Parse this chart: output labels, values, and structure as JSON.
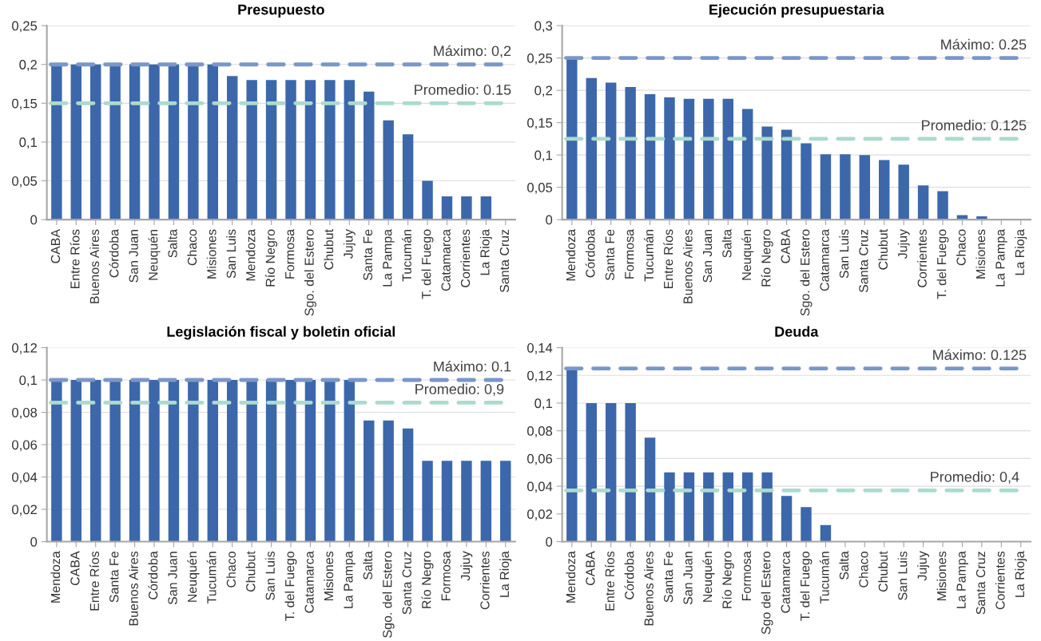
{
  "chart_data": [
    {
      "type": "bar",
      "title": "Presupuesto",
      "categories": [
        "CABA",
        "Entre Ríos",
        "Buenos Aires",
        "Córdoba",
        "San Juan",
        "Neuquén",
        "Salta",
        "Chaco",
        "Misiones",
        "San Luis",
        "Mendoza",
        "Río Negro",
        "Formosa",
        "Sgo. del Estero",
        "Chubut",
        "Jujuy",
        "Santa Fe",
        "La Pampa",
        "Tucumán",
        "T. del Fuego",
        "Catamarca",
        "Corrientes",
        "La Rioja",
        "Santa Cruz"
      ],
      "values": [
        0.2,
        0.2,
        0.2,
        0.2,
        0.2,
        0.2,
        0.2,
        0.2,
        0.2,
        0.185,
        0.18,
        0.18,
        0.18,
        0.18,
        0.18,
        0.18,
        0.165,
        0.128,
        0.11,
        0.05,
        0.03,
        0.03,
        0.03,
        0
      ],
      "color": "#3c67ab",
      "ylim": [
        0,
        0.25
      ],
      "yticks": [
        {
          "value": 0,
          "label": "0"
        },
        {
          "value": 0.05,
          "label": "0,05"
        },
        {
          "value": 0.1,
          "label": "0,1"
        },
        {
          "value": 0.15,
          "label": "0,15"
        },
        {
          "value": 0.2,
          "label": "0,2"
        },
        {
          "value": 0.25,
          "label": "0,25"
        }
      ],
      "grid": "y",
      "legend": false,
      "ref_lines": [
        {
          "axis": "y",
          "value": 0.2,
          "label": "Máximo: 0,2",
          "color": "#7b96c9",
          "line_style": "dashed"
        },
        {
          "axis": "y",
          "value": 0.15,
          "label": "Promedio: 0.15",
          "color": "#acdace",
          "line_style": "dashed"
        }
      ]
    },
    {
      "type": "bar",
      "title": "Ejecución presupuestaria",
      "categories": [
        "Mendoza",
        "Córdoba",
        "Santa Fe",
        "Formosa",
        "Tucumán",
        "Entre Ríos",
        "Buenos Aires",
        "San Juan",
        "Salta",
        "Neuquén",
        "Río Negro",
        "CABA",
        "Sgo. del Estero",
        "Catamarca",
        "San Luis",
        "Santa Cruz",
        "Chubut",
        "Jujuy",
        "Corrientes",
        "T. del Fuego",
        "Chaco",
        "Misiones",
        "La Pampa",
        "La Rioja"
      ],
      "values": [
        0.248,
        0.219,
        0.212,
        0.205,
        0.194,
        0.189,
        0.187,
        0.187,
        0.187,
        0.171,
        0.144,
        0.139,
        0.118,
        0.101,
        0.101,
        0.1,
        0.092,
        0.085,
        0.053,
        0.044,
        0.007,
        0.005,
        0,
        0
      ],
      "color": "#3c67ab",
      "ylim": [
        0,
        0.3
      ],
      "yticks": [
        {
          "value": 0,
          "label": "0"
        },
        {
          "value": 0.05,
          "label": "0,05"
        },
        {
          "value": 0.1,
          "label": "0,1"
        },
        {
          "value": 0.15,
          "label": "0,15"
        },
        {
          "value": 0.2,
          "label": "0,2"
        },
        {
          "value": 0.25,
          "label": "0,25"
        },
        {
          "value": 0.3,
          "label": "0,3"
        }
      ],
      "grid": "y",
      "legend": false,
      "ref_lines": [
        {
          "axis": "y",
          "value": 0.25,
          "label": "Máximo: 0.25",
          "color": "#7b96c9",
          "line_style": "dashed"
        },
        {
          "axis": "y",
          "value": 0.125,
          "label": "Promedio: 0.125",
          "color": "#acdace",
          "line_style": "dashed"
        }
      ]
    },
    {
      "type": "bar",
      "title": "Legislación fiscal y boletin oficial",
      "categories": [
        "Mendoza",
        "CABA",
        "Entre Ríos",
        "Santa Fe",
        "Buenos Aires",
        "Córdoba",
        "San Juan",
        "Neuquén",
        "Tucumán",
        "Chaco",
        "Chubut",
        "San Luis",
        "T. del Fuego",
        "Catamarca",
        "Misiones",
        "La Pampa",
        "Salta",
        "Sgo. del Estero",
        "Santa Cruz",
        "Río Negro",
        "Formosa",
        "Jujuy",
        "Corrientes",
        "La Rioja"
      ],
      "values": [
        0.1,
        0.1,
        0.1,
        0.1,
        0.1,
        0.1,
        0.1,
        0.1,
        0.1,
        0.1,
        0.1,
        0.1,
        0.1,
        0.1,
        0.1,
        0.1,
        0.075,
        0.075,
        0.07,
        0.05,
        0.05,
        0.05,
        0.05,
        0.05
      ],
      "color": "#3c67ab",
      "ylim": [
        0,
        0.12
      ],
      "yticks": [
        {
          "value": 0,
          "label": "0"
        },
        {
          "value": 0.02,
          "label": "0,02"
        },
        {
          "value": 0.04,
          "label": "0,04"
        },
        {
          "value": 0.06,
          "label": "0,06"
        },
        {
          "value": 0.08,
          "label": "0,08"
        },
        {
          "value": 0.1,
          "label": "0,1"
        },
        {
          "value": 0.12,
          "label": "0,12"
        }
      ],
      "grid": "y",
      "legend": false,
      "ref_lines": [
        {
          "axis": "y",
          "value": 0.1,
          "label": "Máximo: 0.1",
          "color": "#7b96c9",
          "line_style": "dashed"
        },
        {
          "axis": "y",
          "value": 0.086,
          "color": "#acdace",
          "line_style": "dashed"
        }
      ],
      "annotations": [
        "Promedio: 0,9"
      ]
    },
    {
      "type": "bar",
      "title": "Deuda",
      "categories": [
        "Mendoza",
        "CABA",
        "Entre Ríos",
        "Córdoba",
        "Buenos Aires",
        "Santa Fe",
        "San Juan",
        "Neuquén",
        "Río Negro",
        "Formosa",
        "Sgo del Estero",
        "Catamarca",
        "T. del Fuego",
        "Tucumán",
        "Salta",
        "Chaco",
        "Chubut",
        "San Luis",
        "Jujuy",
        "Misiones",
        "La Pampa",
        "Santa Cruz",
        "Corrientes",
        "La Rioja"
      ],
      "values": [
        0.125,
        0.1,
        0.1,
        0.1,
        0.075,
        0.05,
        0.05,
        0.05,
        0.05,
        0.05,
        0.05,
        0.033,
        0.025,
        0.012,
        0,
        0,
        0,
        0,
        0,
        0,
        0,
        0,
        0,
        0
      ],
      "color": "#3c67ab",
      "ylim": [
        0,
        0.14
      ],
      "yticks": [
        {
          "value": 0,
          "label": "0"
        },
        {
          "value": 0.02,
          "label": "0,02"
        },
        {
          "value": 0.04,
          "label": "0,04"
        },
        {
          "value": 0.06,
          "label": "0,06"
        },
        {
          "value": 0.08,
          "label": "0,08"
        },
        {
          "value": 0.1,
          "label": "0,1"
        },
        {
          "value": 0.12,
          "label": "0,12"
        },
        {
          "value": 0.14,
          "label": "0,14"
        }
      ],
      "grid": "y",
      "legend": false,
      "ref_lines": [
        {
          "axis": "y",
          "value": 0.125,
          "label": "Máximo: 0.125",
          "color": "#7b96c9",
          "line_style": "dashed"
        },
        {
          "axis": "y",
          "value": 0.037,
          "color": "#acdace",
          "line_style": "dashed"
        }
      ],
      "annotations": [
        "Promedio: 0,4"
      ]
    }
  ]
}
